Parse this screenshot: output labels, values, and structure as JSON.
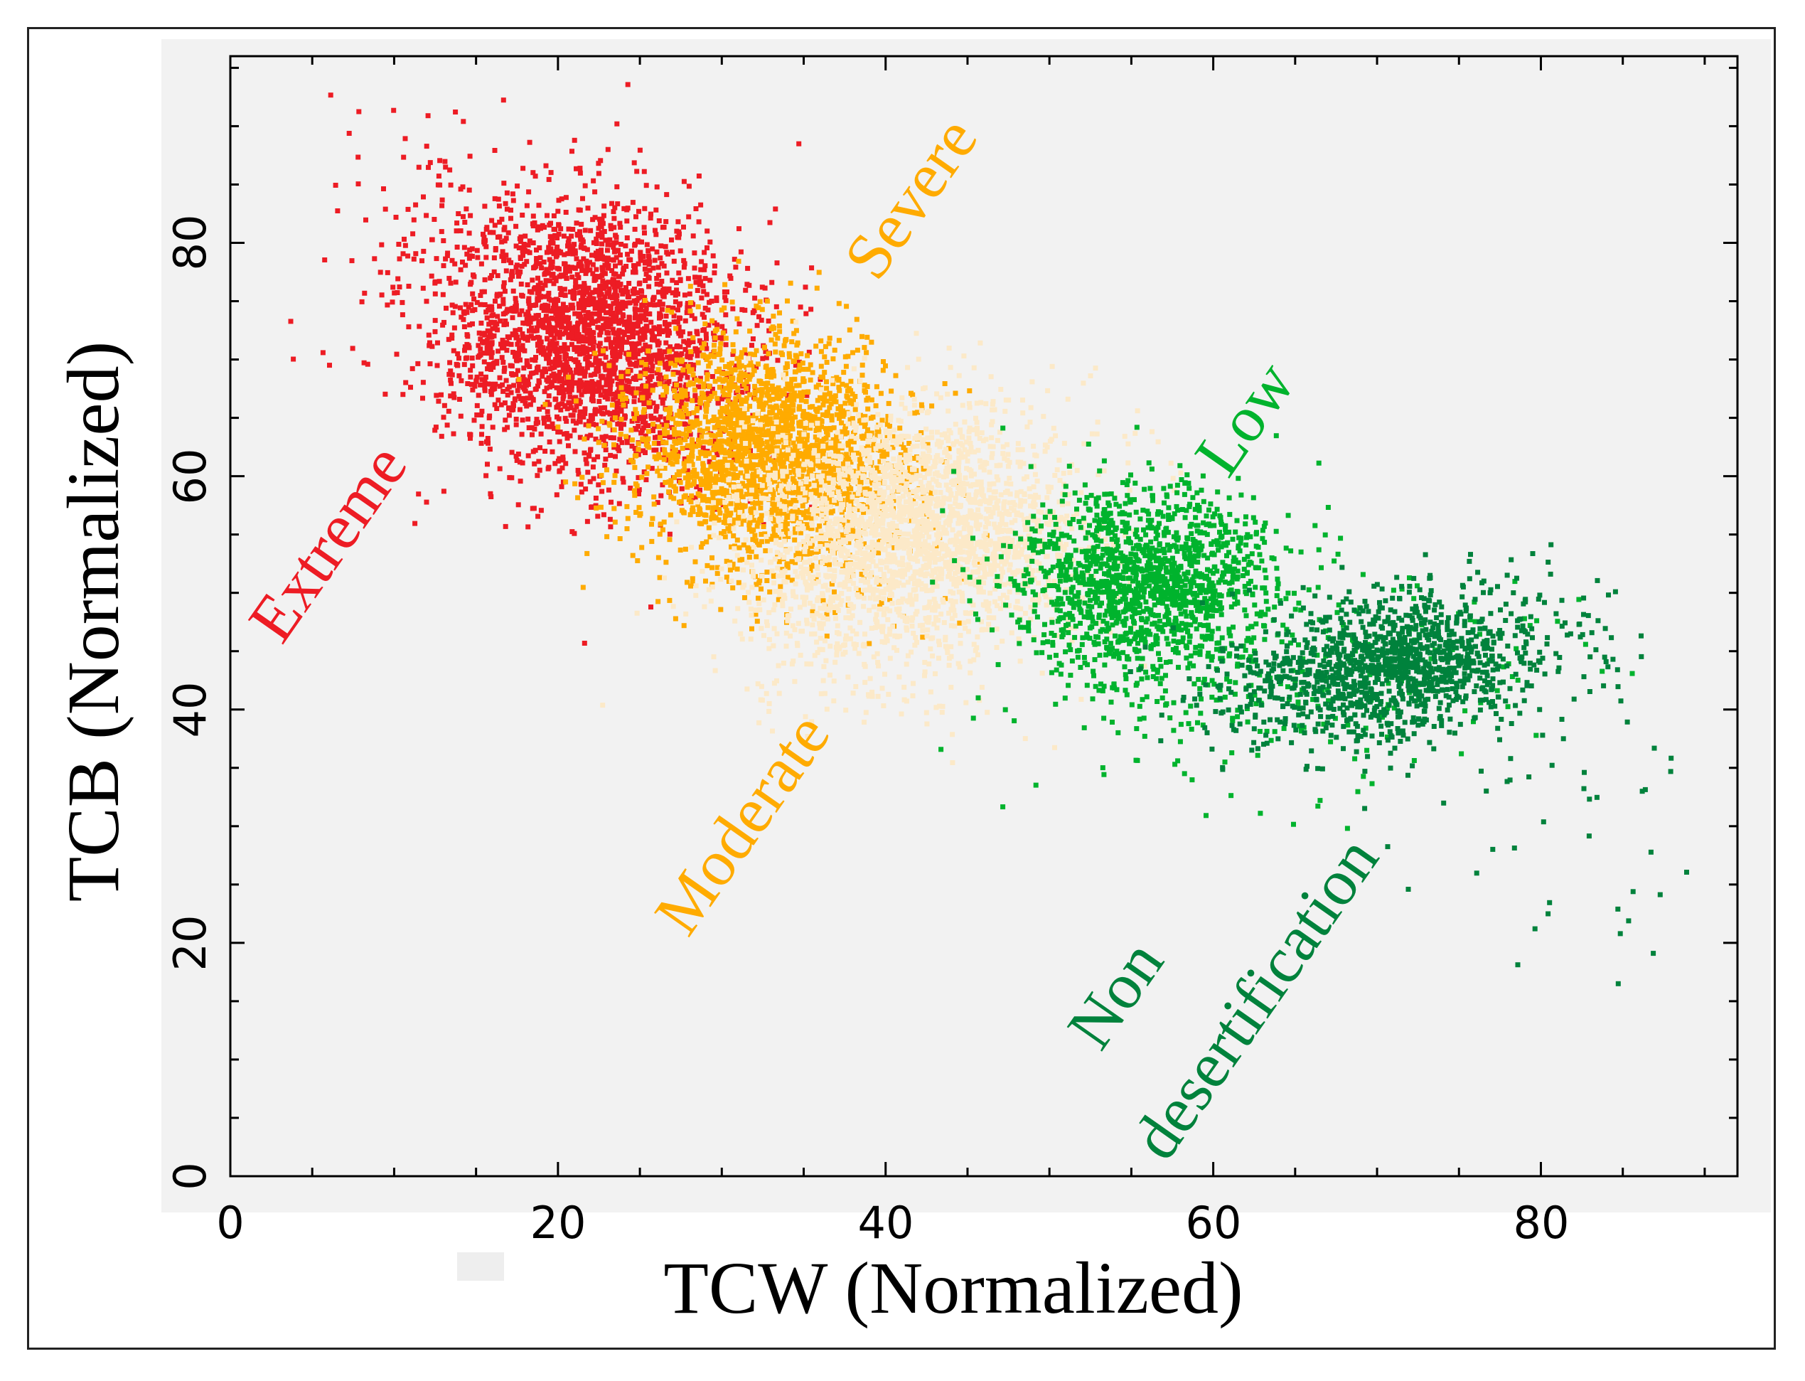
{
  "chart_data": {
    "type": "scatter",
    "title": "",
    "xlabel": "TCW (Normalized)",
    "ylabel": "TCB (Normalized)",
    "xlim": [
      0,
      92
    ],
    "ylim": [
      0,
      96
    ],
    "xticks": [
      0,
      20,
      40,
      60,
      80
    ],
    "yticks": [
      0,
      20,
      40,
      60,
      80
    ],
    "grid": false,
    "background": "#f2f2f2",
    "series": [
      {
        "name": "Extreme",
        "color": "#ed1c24",
        "clusters": [
          {
            "cx": 22,
            "cy": 72,
            "sx": 4.5,
            "sy": 6,
            "rot": 0.25,
            "n": 2600
          },
          {
            "cx": 12,
            "cy": 82,
            "sx": 6,
            "sy": 6,
            "rot": 0,
            "n": 90
          }
        ]
      },
      {
        "name": "Severe",
        "color": "#ffab00",
        "clusters": [
          {
            "cx": 33,
            "cy": 62,
            "sx": 4,
            "sy": 5,
            "rot": 0.3,
            "n": 2400
          }
        ]
      },
      {
        "name": "Moderate",
        "color": "#fce9c8",
        "clusters": [
          {
            "cx": 42,
            "cy": 56,
            "sx": 5,
            "sy": 5,
            "rot": 0.3,
            "n": 2200
          },
          {
            "cx": 38,
            "cy": 47,
            "sx": 5,
            "sy": 4,
            "rot": 0,
            "n": 260
          }
        ]
      },
      {
        "name": "Low",
        "color": "#00b32d",
        "clusters": [
          {
            "cx": 56,
            "cy": 51,
            "sx": 4,
            "sy": 4,
            "rot": 0.3,
            "n": 1500
          },
          {
            "cx": 65,
            "cy": 42,
            "sx": 8,
            "sy": 4,
            "rot": 0.25,
            "n": 220
          }
        ]
      },
      {
        "name": "Non desertification",
        "color": "#00823c",
        "clusters": [
          {
            "cx": 71,
            "cy": 44,
            "sx": 5,
            "sy": 3,
            "rot": 0.3,
            "n": 1300
          },
          {
            "cx": 82,
            "cy": 32,
            "sx": 5,
            "sy": 8,
            "rot": 0.2,
            "n": 50
          }
        ]
      }
    ],
    "region_labels": [
      "Extreme",
      "Severe",
      "Moderate",
      "Low",
      "Non",
      "desertification"
    ]
  }
}
